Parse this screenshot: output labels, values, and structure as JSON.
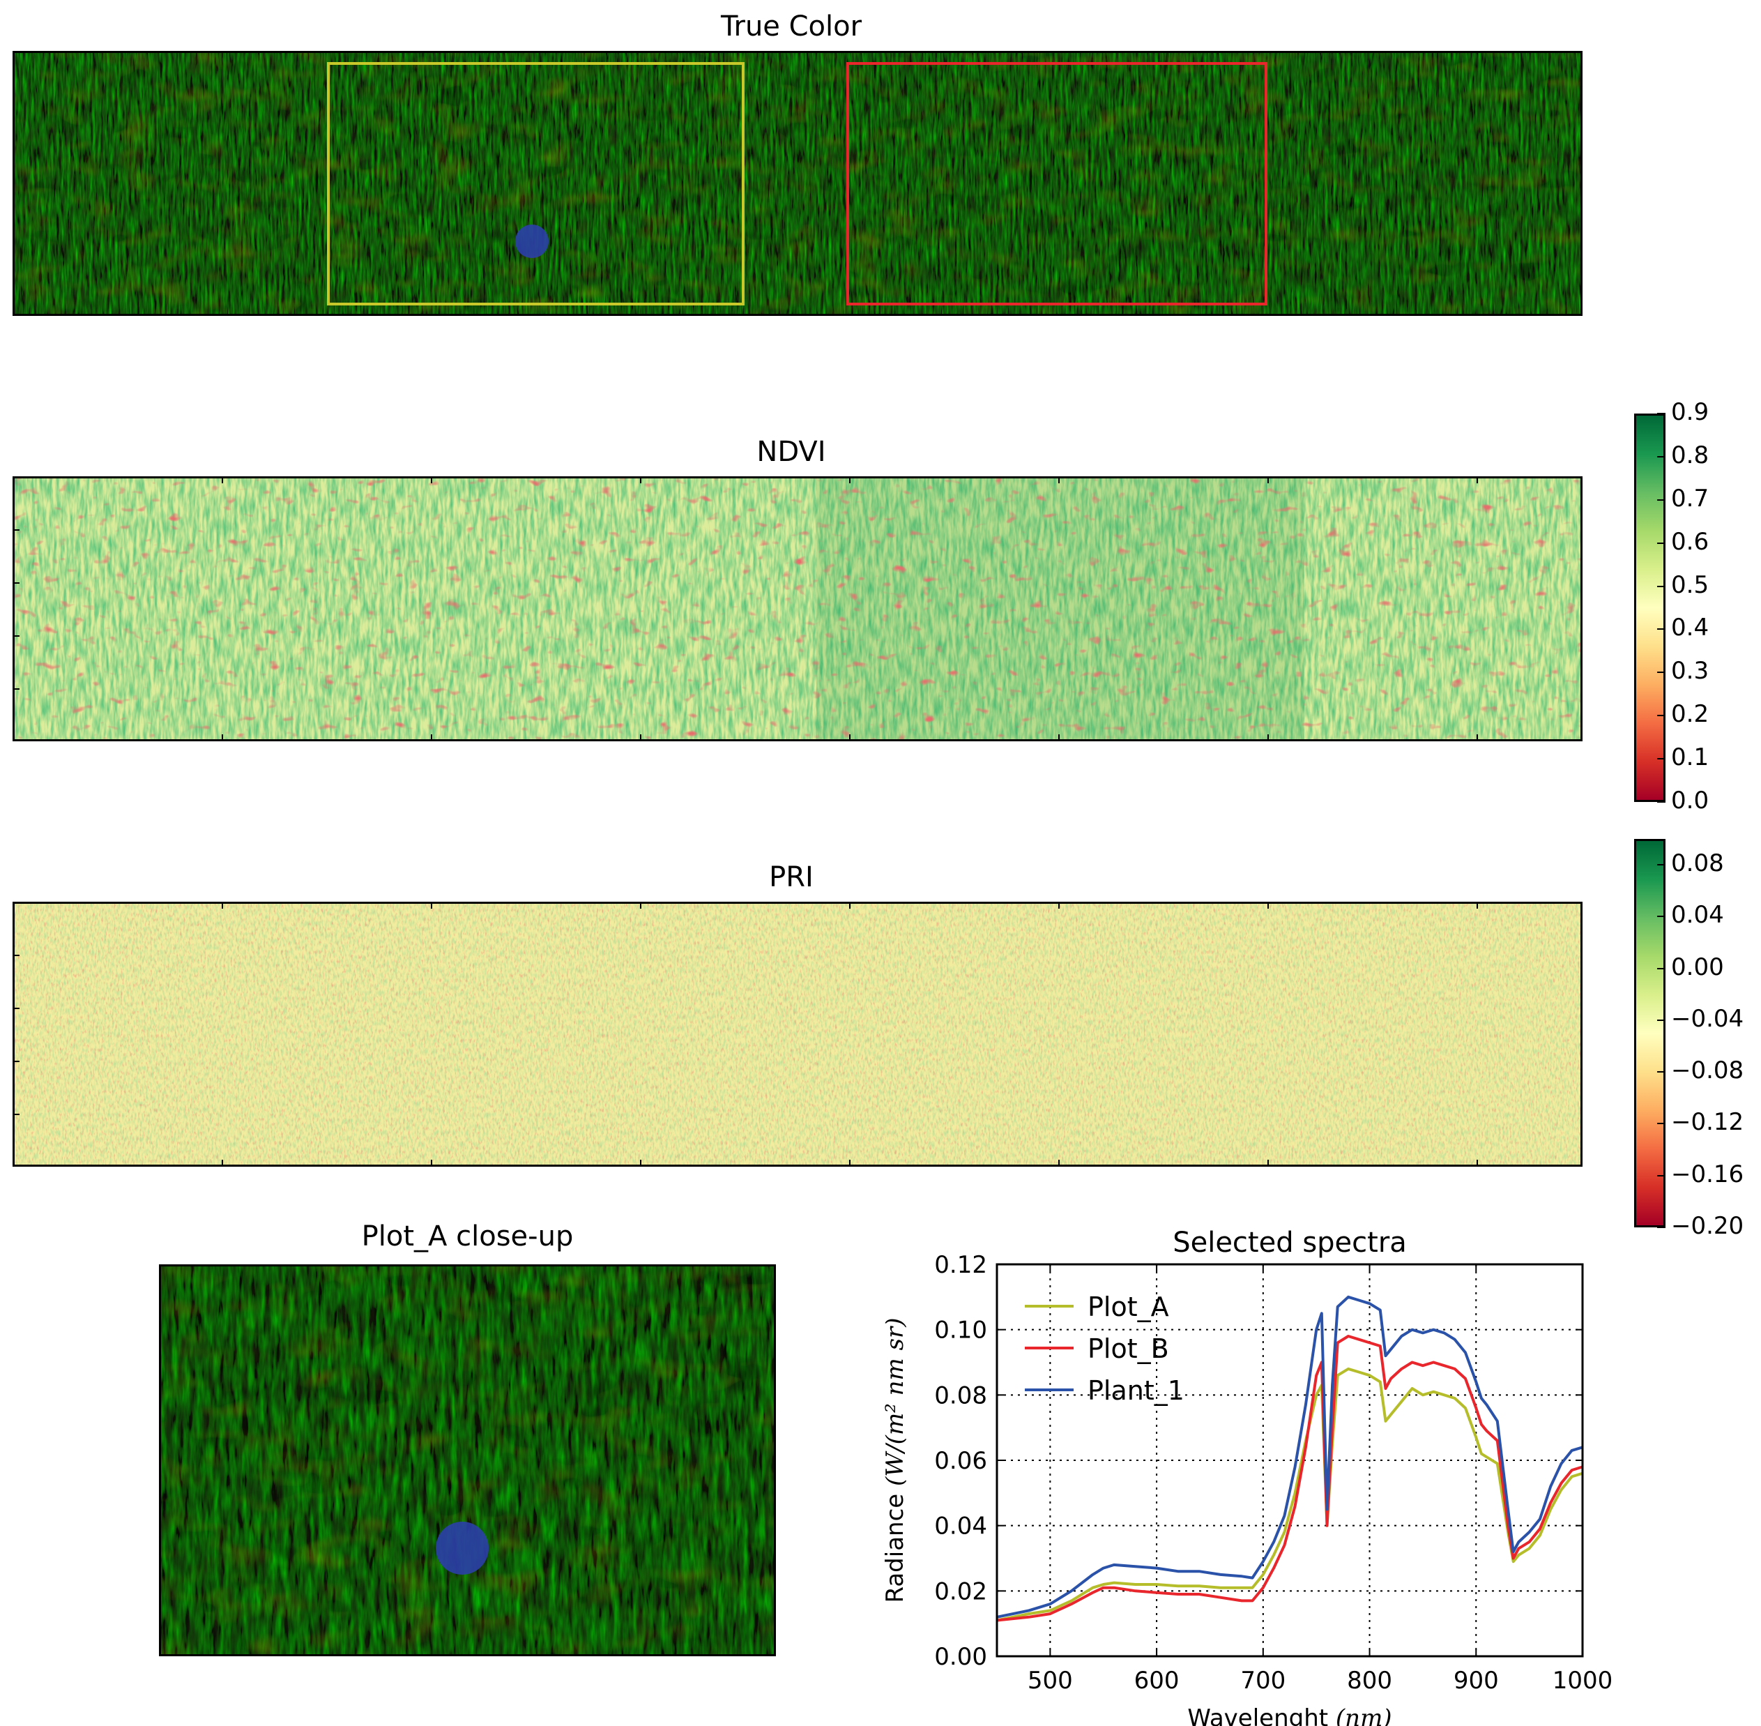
{
  "panels": {
    "true_color": {
      "title": "True Color"
    },
    "ndvi": {
      "title": "NDVI"
    },
    "pri": {
      "title": "PRI"
    },
    "closeup": {
      "title": "Plot_A close-up"
    }
  },
  "colorbars": {
    "ndvi": {
      "min": 0.0,
      "max": 0.9,
      "ticks": [
        "0.9",
        "0.8",
        "0.7",
        "0.6",
        "0.5",
        "0.4",
        "0.3",
        "0.2",
        "0.1",
        "0.0"
      ],
      "colormap": "RdYlGn"
    },
    "pri": {
      "min": -0.2,
      "max": 0.1,
      "ticks": [
        "0.08",
        "0.04",
        "0.00",
        "−0.04",
        "−0.08",
        "−0.12",
        "−0.16",
        "−0.20"
      ],
      "colormap": "RdYlGn"
    }
  },
  "overlays": {
    "plot_a_box_color": "#c8c82a",
    "plot_b_box_color": "#e8262c",
    "plant_marker_color": "#2b3fa8"
  },
  "chart_data": {
    "type": "line",
    "title": "Selected spectra",
    "xlabel": "Wavelenght",
    "xlabel_unit": "(nm)",
    "ylabel": "Radiance",
    "ylabel_unit": "(W/(m² nm sr)",
    "xlim": [
      450,
      1000
    ],
    "ylim": [
      0.0,
      0.12
    ],
    "xticks": [
      "500",
      "600",
      "700",
      "800",
      "900",
      "1000"
    ],
    "yticks": [
      "0.00",
      "0.02",
      "0.04",
      "0.06",
      "0.08",
      "0.10",
      "0.12"
    ],
    "grid": true,
    "legend_position": "top-left",
    "series": [
      {
        "name": "Plot_A",
        "color": "#b5bd2a",
        "x": [
          450,
          480,
          500,
          520,
          540,
          550,
          560,
          580,
          600,
          620,
          640,
          660,
          680,
          690,
          700,
          710,
          720,
          730,
          740,
          750,
          755,
          760,
          765,
          770,
          780,
          790,
          800,
          810,
          815,
          820,
          830,
          840,
          850,
          860,
          870,
          880,
          890,
          900,
          905,
          910,
          920,
          930,
          935,
          940,
          950,
          960,
          970,
          980,
          990,
          1000
        ],
        "y": [
          0.011,
          0.013,
          0.014,
          0.017,
          0.021,
          0.022,
          0.0225,
          0.022,
          0.022,
          0.0215,
          0.0215,
          0.021,
          0.021,
          0.021,
          0.025,
          0.031,
          0.038,
          0.05,
          0.066,
          0.08,
          0.083,
          0.04,
          0.065,
          0.086,
          0.088,
          0.087,
          0.086,
          0.084,
          0.072,
          0.074,
          0.078,
          0.082,
          0.08,
          0.081,
          0.08,
          0.079,
          0.076,
          0.067,
          0.062,
          0.061,
          0.059,
          0.038,
          0.029,
          0.031,
          0.033,
          0.037,
          0.045,
          0.051,
          0.055,
          0.056
        ]
      },
      {
        "name": "Plot_B",
        "color": "#e8262c",
        "x": [
          450,
          480,
          500,
          520,
          540,
          550,
          560,
          580,
          600,
          620,
          640,
          660,
          680,
          690,
          700,
          710,
          720,
          730,
          740,
          750,
          755,
          760,
          765,
          770,
          780,
          790,
          800,
          810,
          815,
          820,
          830,
          840,
          850,
          860,
          870,
          880,
          890,
          900,
          905,
          910,
          920,
          930,
          935,
          940,
          950,
          960,
          970,
          980,
          990,
          1000
        ],
        "y": [
          0.011,
          0.012,
          0.013,
          0.016,
          0.0195,
          0.021,
          0.021,
          0.02,
          0.0195,
          0.019,
          0.019,
          0.018,
          0.017,
          0.017,
          0.021,
          0.027,
          0.034,
          0.046,
          0.064,
          0.086,
          0.09,
          0.04,
          0.07,
          0.096,
          0.098,
          0.097,
          0.096,
          0.095,
          0.082,
          0.085,
          0.088,
          0.09,
          0.089,
          0.09,
          0.089,
          0.088,
          0.085,
          0.076,
          0.071,
          0.069,
          0.066,
          0.04,
          0.03,
          0.033,
          0.035,
          0.039,
          0.047,
          0.053,
          0.057,
          0.058
        ]
      },
      {
        "name": "Plant_1",
        "color": "#2a52a8",
        "x": [
          450,
          480,
          500,
          520,
          540,
          550,
          560,
          580,
          600,
          620,
          640,
          660,
          680,
          690,
          700,
          710,
          720,
          730,
          740,
          750,
          755,
          760,
          765,
          770,
          780,
          790,
          800,
          810,
          815,
          820,
          830,
          840,
          850,
          860,
          870,
          880,
          890,
          900,
          905,
          910,
          920,
          930,
          935,
          940,
          950,
          960,
          970,
          980,
          990,
          1000
        ],
        "y": [
          0.012,
          0.014,
          0.016,
          0.02,
          0.025,
          0.027,
          0.028,
          0.0275,
          0.027,
          0.026,
          0.026,
          0.025,
          0.0245,
          0.024,
          0.029,
          0.035,
          0.043,
          0.058,
          0.077,
          0.1,
          0.105,
          0.045,
          0.083,
          0.107,
          0.11,
          0.109,
          0.108,
          0.106,
          0.092,
          0.094,
          0.098,
          0.1,
          0.099,
          0.1,
          0.099,
          0.097,
          0.093,
          0.084,
          0.079,
          0.077,
          0.072,
          0.045,
          0.032,
          0.035,
          0.038,
          0.042,
          0.052,
          0.059,
          0.063,
          0.064
        ]
      }
    ]
  }
}
